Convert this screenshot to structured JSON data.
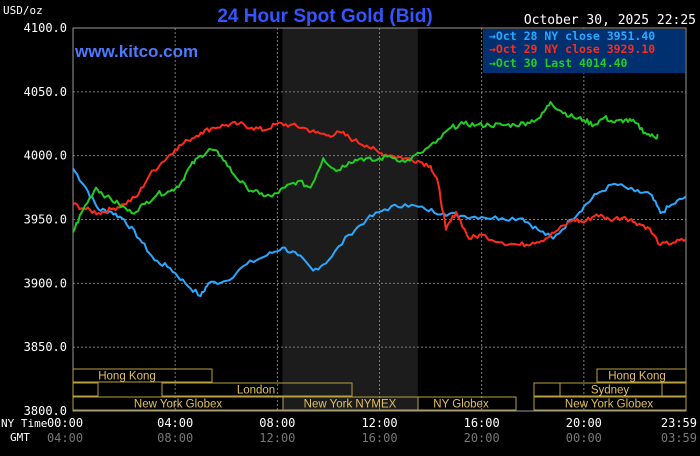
{
  "header": {
    "units": "USD/oz",
    "title": "24 Hour Spot Gold (Bid)",
    "datetime": "October 30, 2025 22:25",
    "watermark": "www.kitco.com"
  },
  "axes": {
    "y_ticks": [
      "4100.0",
      "4050.0",
      "4000.0",
      "3950.0",
      "3900.0",
      "3850.0",
      "3800.0"
    ],
    "x_ticks_ny": [
      "00:00",
      "04:00",
      "08:00",
      "12:00",
      "16:00",
      "20:00",
      "23:59"
    ],
    "x_ticks_gmt": [
      "04:00",
      "08:00",
      "12:00",
      "16:00",
      "20:00",
      "00:00",
      "03:59"
    ],
    "ny_time_label": "NY Time",
    "gmt_label": "GMT"
  },
  "sessions": [
    {
      "label": "Hong Kong"
    },
    {
      "label": "Hong Kong"
    },
    {
      "label": "London"
    },
    {
      "label": "Sydney"
    },
    {
      "label": "New York Globex"
    },
    {
      "label": "New York NYMEX"
    },
    {
      "label": "NY Globex"
    },
    {
      "label": "New York Globex"
    }
  ],
  "colors": {
    "background": "#000000",
    "title": "#3355ff",
    "grid": "#7a7a7a",
    "shaded_region": "#1c1c1c",
    "session_box": "#b8a040",
    "session_text": "#e0c060",
    "legend_bg": "#003070",
    "oct28": "#2aa8ff",
    "oct29": "#ff2a1a",
    "oct30": "#22cc22"
  },
  "chart_data": {
    "type": "line",
    "ylim": [
      3800,
      4100
    ],
    "xlim_hours": [
      0,
      24
    ],
    "shaded_hours": [
      8.2,
      13.5
    ],
    "grid": true,
    "legend_placement": "top-right",
    "series": [
      {
        "key": "oct28",
        "name": "Oct 28 NY close 3951.40",
        "points": [
          [
            0,
            3990
          ],
          [
            0.5,
            3975
          ],
          [
            1,
            3958
          ],
          [
            1.5,
            3956
          ],
          [
            2,
            3950
          ],
          [
            2.6,
            3935
          ],
          [
            3.2,
            3918
          ],
          [
            3.8,
            3912
          ],
          [
            4.4,
            3900
          ],
          [
            5.0,
            3890
          ],
          [
            5.3,
            3900
          ],
          [
            6,
            3902
          ],
          [
            6.8,
            3915
          ],
          [
            7.6,
            3922
          ],
          [
            8.2,
            3928
          ],
          [
            8.8,
            3922
          ],
          [
            9.4,
            3910
          ],
          [
            10,
            3918
          ],
          [
            10.8,
            3938
          ],
          [
            11.5,
            3950
          ],
          [
            12.2,
            3958
          ],
          [
            13,
            3962
          ],
          [
            13.8,
            3958
          ],
          [
            14.5,
            3955
          ],
          [
            15.2,
            3953
          ],
          [
            16,
            3952
          ],
          [
            16.8,
            3951
          ],
          [
            17.6,
            3951
          ],
          [
            18.2,
            3942
          ],
          [
            18.8,
            3935
          ],
          [
            19.5,
            3950
          ],
          [
            20,
            3960
          ],
          [
            20.5,
            3970
          ],
          [
            21.2,
            3978
          ],
          [
            22,
            3972
          ],
          [
            22.6,
            3970
          ],
          [
            23,
            3955
          ],
          [
            23.5,
            3962
          ],
          [
            23.99,
            3968
          ]
        ]
      },
      {
        "key": "oct29",
        "name": "Oct 29 NY close 3929.10",
        "points": [
          [
            0,
            3962
          ],
          [
            0.5,
            3958
          ],
          [
            1,
            3955
          ],
          [
            1.5,
            3958
          ],
          [
            2,
            3962
          ],
          [
            2.5,
            3968
          ],
          [
            3,
            3985
          ],
          [
            3.5,
            3995
          ],
          [
            4,
            4005
          ],
          [
            4.5,
            4012
          ],
          [
            5,
            4018
          ],
          [
            5.5,
            4022
          ],
          [
            6,
            4024
          ],
          [
            6.5,
            4025
          ],
          [
            7,
            4022
          ],
          [
            7.5,
            4020
          ],
          [
            8,
            4025
          ],
          [
            8.5,
            4024
          ],
          [
            9,
            4022
          ],
          [
            9.5,
            4018
          ],
          [
            10,
            4016
          ],
          [
            10.5,
            4018
          ],
          [
            11,
            4012
          ],
          [
            11.5,
            4008
          ],
          [
            12,
            4002
          ],
          [
            12.5,
            4000
          ],
          [
            13,
            3998
          ],
          [
            13.5,
            3996
          ],
          [
            14,
            3992
          ],
          [
            14.3,
            3978
          ],
          [
            14.6,
            3942
          ],
          [
            15,
            3956
          ],
          [
            15.5,
            3935
          ],
          [
            16,
            3938
          ],
          [
            16.8,
            3932
          ],
          [
            17.5,
            3930
          ],
          [
            18,
            3932
          ],
          [
            18.5,
            3935
          ],
          [
            19,
            3942
          ],
          [
            19.6,
            3950
          ],
          [
            20,
            3948
          ],
          [
            20.5,
            3954
          ],
          [
            21,
            3950
          ],
          [
            21.6,
            3952
          ],
          [
            22,
            3948
          ],
          [
            22.5,
            3944
          ],
          [
            23,
            3930
          ],
          [
            23.5,
            3932
          ],
          [
            23.99,
            3934
          ]
        ]
      },
      {
        "key": "oct30",
        "name": "Oct 30 Last 4014.40",
        "points": [
          [
            0,
            3940
          ],
          [
            0.4,
            3958
          ],
          [
            0.9,
            3975
          ],
          [
            1.3,
            3968
          ],
          [
            1.8,
            3962
          ],
          [
            2.3,
            3955
          ],
          [
            2.8,
            3962
          ],
          [
            3.3,
            3970
          ],
          [
            3.8,
            3972
          ],
          [
            4.2,
            3978
          ],
          [
            4.6,
            3992
          ],
          [
            5,
            4000
          ],
          [
            5.4,
            4005
          ],
          [
            5.8,
            4000
          ],
          [
            6.3,
            3985
          ],
          [
            6.8,
            3975
          ],
          [
            7.3,
            3970
          ],
          [
            7.8,
            3968
          ],
          [
            8.3,
            3975
          ],
          [
            8.8,
            3980
          ],
          [
            9.3,
            3975
          ],
          [
            9.8,
            3998
          ],
          [
            10.3,
            3988
          ],
          [
            10.8,
            3995
          ],
          [
            11.3,
            3998
          ],
          [
            11.8,
            3996
          ],
          [
            12.4,
            4000
          ],
          [
            13,
            3995
          ],
          [
            13.6,
            4002
          ],
          [
            14.2,
            4010
          ],
          [
            14.8,
            4022
          ],
          [
            15.3,
            4025
          ],
          [
            15.8,
            4024
          ],
          [
            16.3,
            4024
          ],
          [
            16.8,
            4024
          ],
          [
            17.3,
            4024
          ],
          [
            17.8,
            4026
          ],
          [
            18.3,
            4030
          ],
          [
            18.7,
            4042
          ],
          [
            19.1,
            4035
          ],
          [
            19.6,
            4030
          ],
          [
            20,
            4028
          ],
          [
            20.4,
            4024
          ],
          [
            20.8,
            4030
          ],
          [
            21.2,
            4026
          ],
          [
            21.6,
            4028
          ],
          [
            22,
            4026
          ],
          [
            22.4,
            4018
          ],
          [
            22.8,
            4014
          ],
          [
            22.9,
            4016
          ]
        ]
      }
    ]
  }
}
